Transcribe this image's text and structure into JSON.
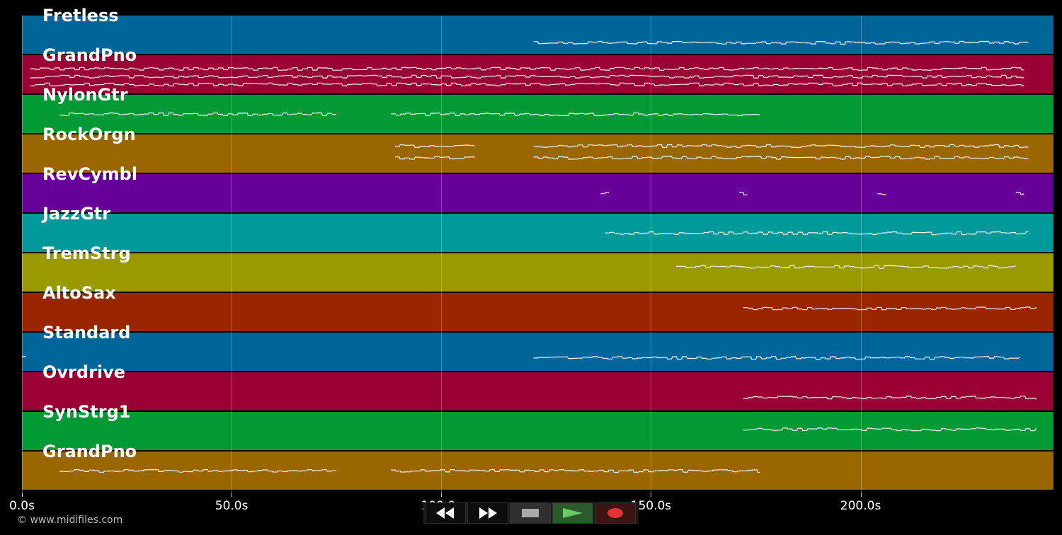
{
  "tracks": [
    {
      "name": "Fretless",
      "color": "#006699",
      "notes": [
        [
          122,
          240,
          0.7
        ]
      ]
    },
    {
      "name": "GrandPno",
      "color": "#990033",
      "notes": [
        [
          2,
          239,
          0.55
        ],
        [
          2,
          239,
          0.35
        ],
        [
          2,
          239,
          0.75
        ]
      ]
    },
    {
      "name": "NylonGtr",
      "color": "#009933",
      "notes": [
        [
          9,
          75,
          0.5
        ],
        [
          88,
          176,
          0.5
        ]
      ]
    },
    {
      "name": "RockOrgn",
      "color": "#996600",
      "notes": [
        [
          89,
          108,
          0.3
        ],
        [
          89,
          108,
          0.6
        ],
        [
          122,
          240,
          0.3
        ],
        [
          122,
          240,
          0.6
        ]
      ]
    },
    {
      "name": "RevCymbl",
      "color": "#660099",
      "notes": [
        [
          138,
          140,
          0.5
        ],
        [
          171,
          173,
          0.5
        ],
        [
          204,
          206,
          0.5
        ],
        [
          237,
          239,
          0.5
        ]
      ]
    },
    {
      "name": "JazzGtr",
      "color": "#009999",
      "notes": [
        [
          139,
          240,
          0.5
        ]
      ]
    },
    {
      "name": "TremStrg",
      "color": "#999900",
      "notes": [
        [
          156,
          237,
          0.35
        ]
      ]
    },
    {
      "name": "AltoSax",
      "color": "#992600",
      "notes": [
        [
          172,
          242,
          0.4
        ]
      ]
    },
    {
      "name": "Standard",
      "color": "#006699",
      "notes": [
        [
          0,
          1,
          0.65
        ],
        [
          122,
          238,
          0.65
        ]
      ]
    },
    {
      "name": "Ovrdrive",
      "color": "#990033",
      "notes": [
        [
          172,
          242,
          0.65
        ]
      ]
    },
    {
      "name": "SynStrg1",
      "color": "#009933",
      "notes": [
        [
          172,
          242,
          0.45
        ]
      ]
    },
    {
      "name": "GrandPno",
      "color": "#996600",
      "notes": [
        [
          9,
          75,
          0.5
        ],
        [
          88,
          176,
          0.5
        ]
      ]
    }
  ],
  "timeline": {
    "max_seconds": 246,
    "ticks": [
      {
        "value": 0,
        "label": "0.0s"
      },
      {
        "value": 50,
        "label": "50.0s"
      },
      {
        "value": 100,
        "label": "100.0s"
      },
      {
        "value": 150,
        "label": "150.0s"
      },
      {
        "value": 200,
        "label": "200.0s"
      }
    ]
  },
  "copyright": "© www.midifiles.com",
  "transport": {
    "rewind_icon": "rewind-icon",
    "forward_icon": "fast-forward-icon",
    "stop_icon": "stop-icon",
    "play_icon": "play-icon",
    "record_icon": "record-icon",
    "play_color": "#66cc66",
    "record_color": "#e03333"
  }
}
